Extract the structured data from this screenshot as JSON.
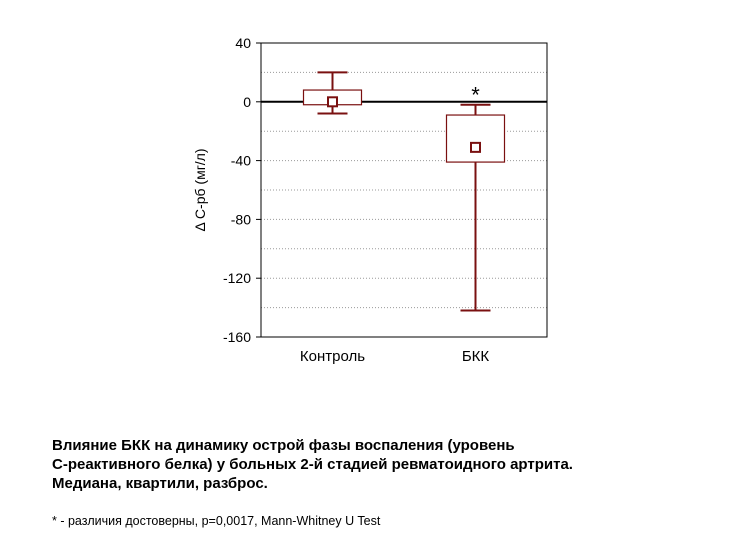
{
  "chart_data": {
    "type": "box",
    "ylabel": "Δ С-рб (мг/л)",
    "ylim": [
      -160,
      40
    ],
    "yticks": [
      40,
      0,
      -40,
      -80,
      -120,
      -160
    ],
    "grid": true,
    "categories": [
      "Контроль",
      "БКК"
    ],
    "boxes": [
      {
        "category": "Контроль",
        "median": 0,
        "q1": -2,
        "q3": 8,
        "min": -8,
        "max": 20
      },
      {
        "category": "БКК",
        "median": -31,
        "q1": -41,
        "q3": -9,
        "min": -142,
        "max": -2,
        "annotation": "*"
      }
    ],
    "reference_line": 0,
    "colors": {
      "box": "#7a1010",
      "grid": "#9a9a9a",
      "axis": "#000000"
    }
  },
  "caption": {
    "lines": [
      "Влияние БКК на динамику острой фазы воспаления (уровень",
      "С-реактивного белка) у больных 2-й стадией ревматоидного артрита.",
      "Медиана, квартили, разброс."
    ],
    "footnote": "* - различия достоверны, p=0,0017, Mann-Whitney U Test"
  }
}
